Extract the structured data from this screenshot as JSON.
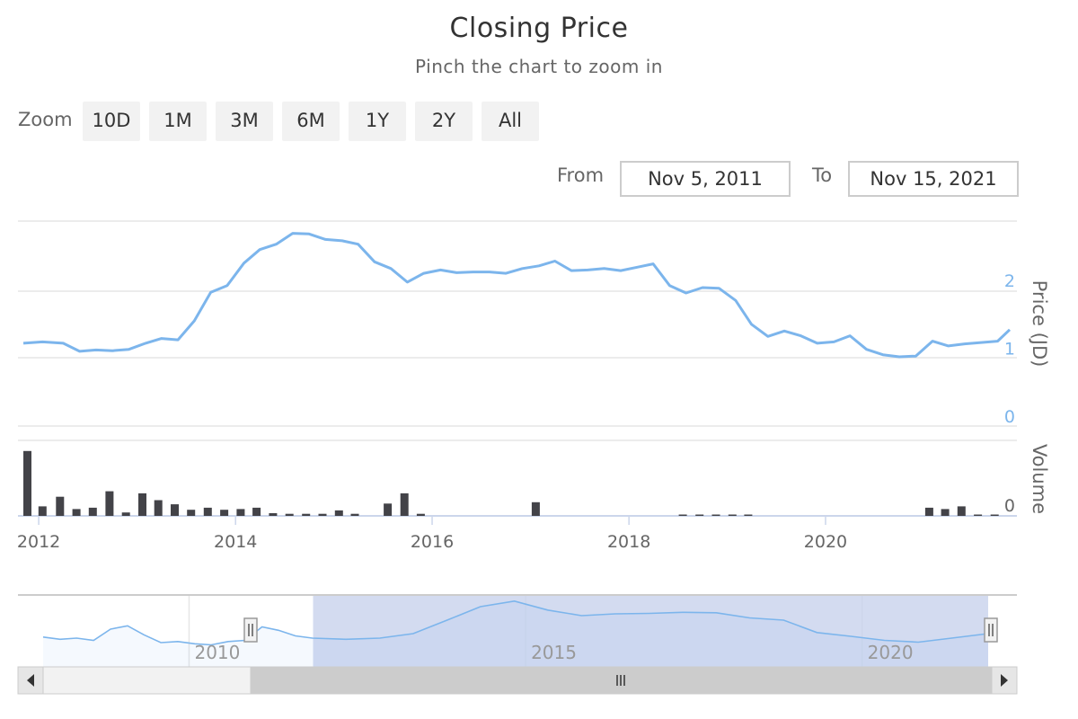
{
  "header": {
    "title": "Closing Price",
    "subtitle": "Pinch the chart to zoom in"
  },
  "range_selector": {
    "zoom_label": "Zoom",
    "buttons": [
      "10D",
      "1M",
      "3M",
      "6M",
      "1Y",
      "2Y",
      "All"
    ],
    "from_label": "From",
    "from_value": "Nov 5, 2011",
    "to_label": "To",
    "to_value": "Nov 15, 2021"
  },
  "colors": {
    "price_line": "#7cb5ec",
    "volume_bar": "#434348",
    "navigator_mask": "#c8d2ec",
    "grid": "#e6e6e6"
  },
  "icons": {
    "scroll_left": "left-arrow-icon",
    "scroll_right": "right-arrow-icon",
    "handle": "grip-icon"
  },
  "chart_data": [
    {
      "type": "line",
      "name": "price",
      "ylabel": "Price (JD)",
      "ylim": [
        0,
        3
      ],
      "yticks": [
        0,
        1,
        2
      ],
      "xlim": [
        "2011-11-05",
        "2021-11-15"
      ],
      "x_ticks": [
        "2012",
        "2014",
        "2016",
        "2018",
        "2020"
      ],
      "x": [
        "2011-11-05",
        "2012-01-15",
        "2012-04-01",
        "2012-06-01",
        "2012-08-01",
        "2012-10-01",
        "2012-12-01",
        "2013-02-01",
        "2013-04-01",
        "2013-06-01",
        "2013-08-01",
        "2013-10-01",
        "2013-12-01",
        "2014-02-01",
        "2014-04-01",
        "2014-06-01",
        "2014-08-01",
        "2014-10-01",
        "2014-12-01",
        "2015-02-01",
        "2015-04-01",
        "2015-06-01",
        "2015-08-01",
        "2015-10-01",
        "2015-12-01",
        "2016-02-01",
        "2016-04-01",
        "2016-06-01",
        "2016-08-01",
        "2016-10-01",
        "2016-12-01",
        "2017-02-01",
        "2017-04-01",
        "2017-06-01",
        "2017-08-01",
        "2017-10-01",
        "2017-12-01",
        "2018-02-01",
        "2018-04-01",
        "2018-06-01",
        "2018-08-01",
        "2018-10-01",
        "2018-12-01",
        "2019-02-01",
        "2019-04-01",
        "2019-06-01",
        "2019-08-01",
        "2019-10-01",
        "2019-12-01",
        "2020-02-01",
        "2020-04-01",
        "2020-06-01",
        "2020-08-01",
        "2020-10-01",
        "2020-12-01",
        "2021-02-01",
        "2021-04-01",
        "2021-06-01",
        "2021-08-01",
        "2021-10-01",
        "2021-11-15"
      ],
      "values": [
        1.22,
        1.24,
        1.22,
        1.1,
        1.12,
        1.11,
        1.13,
        1.22,
        1.29,
        1.27,
        1.55,
        1.97,
        2.07,
        2.4,
        2.6,
        2.68,
        2.84,
        2.83,
        2.75,
        2.73,
        2.68,
        2.42,
        2.32,
        2.12,
        2.25,
        2.3,
        2.26,
        2.27,
        2.27,
        2.25,
        2.32,
        2.36,
        2.43,
        2.29,
        2.3,
        2.32,
        2.29,
        2.34,
        2.39,
        2.07,
        1.96,
        2.04,
        2.03,
        1.85,
        1.5,
        1.32,
        1.4,
        1.33,
        1.22,
        1.24,
        1.33,
        1.13,
        1.05,
        1.02,
        1.03,
        1.25,
        1.18,
        1.21,
        1.23,
        1.25,
        1.42
      ]
    },
    {
      "type": "bar",
      "name": "volume",
      "ylabel": "Volume",
      "yticks": [
        0
      ],
      "ylim": [
        0,
        100
      ],
      "x": [
        "2011-11-20",
        "2012-01-15",
        "2012-03-20",
        "2012-05-20",
        "2012-07-20",
        "2012-09-20",
        "2012-11-20",
        "2013-01-20",
        "2013-03-20",
        "2013-05-20",
        "2013-07-20",
        "2013-09-20",
        "2013-11-20",
        "2014-01-20",
        "2014-03-20",
        "2014-05-20",
        "2014-07-20",
        "2014-09-20",
        "2014-11-20",
        "2015-01-20",
        "2015-03-20",
        "2015-07-20",
        "2015-09-20",
        "2015-11-20",
        "2017-01-20",
        "2018-07-20",
        "2018-09-20",
        "2018-11-20",
        "2019-01-20",
        "2019-03-20",
        "2021-01-20",
        "2021-03-20",
        "2021-05-20",
        "2021-07-20",
        "2021-09-20"
      ],
      "values": [
        95,
        14,
        28,
        10,
        12,
        36,
        5,
        33,
        23,
        17,
        9,
        12,
        9,
        10,
        12,
        4,
        3,
        3,
        3,
        8,
        3,
        18,
        33,
        3,
        20,
        2,
        2,
        2,
        2,
        2,
        12,
        10,
        14,
        2,
        2
      ]
    },
    {
      "type": "area",
      "name": "navigator",
      "xlim": [
        "2007-11-01",
        "2021-11-15"
      ],
      "x_ticks": [
        "2010",
        "2015",
        "2020"
      ],
      "selected_range": [
        "2011-11-05",
        "2021-11-15"
      ],
      "values_note": "",
      "x": [
        "2007-11-01",
        "2008-02-01",
        "2008-05-01",
        "2008-08-01",
        "2008-11-01",
        "2009-02-01",
        "2009-05-01",
        "2009-08-01",
        "2009-11-01",
        "2010-02-01",
        "2010-05-01",
        "2010-08-01",
        "2010-11-01",
        "2011-02-01",
        "2011-05-01",
        "2011-08-01",
        "2011-11-01",
        "2012-05-01",
        "2012-11-01",
        "2013-05-01",
        "2013-11-01",
        "2014-05-01",
        "2014-11-01",
        "2015-05-01",
        "2015-11-01",
        "2016-05-01",
        "2016-11-01",
        "2017-05-01",
        "2017-11-01",
        "2018-05-01",
        "2018-11-01",
        "2019-05-01",
        "2019-11-01",
        "2020-05-01",
        "2020-11-01",
        "2021-05-01",
        "2021-11-15"
      ],
      "values": [
        1.25,
        1.15,
        1.2,
        1.1,
        1.6,
        1.75,
        1.35,
        1.0,
        1.05,
        0.95,
        0.9,
        1.05,
        1.1,
        1.7,
        1.55,
        1.3,
        1.2,
        1.15,
        1.2,
        1.4,
        2.0,
        2.6,
        2.85,
        2.45,
        2.2,
        2.28,
        2.3,
        2.35,
        2.33,
        2.1,
        2.0,
        1.45,
        1.28,
        1.1,
        1.02,
        1.2,
        1.4
      ]
    }
  ]
}
